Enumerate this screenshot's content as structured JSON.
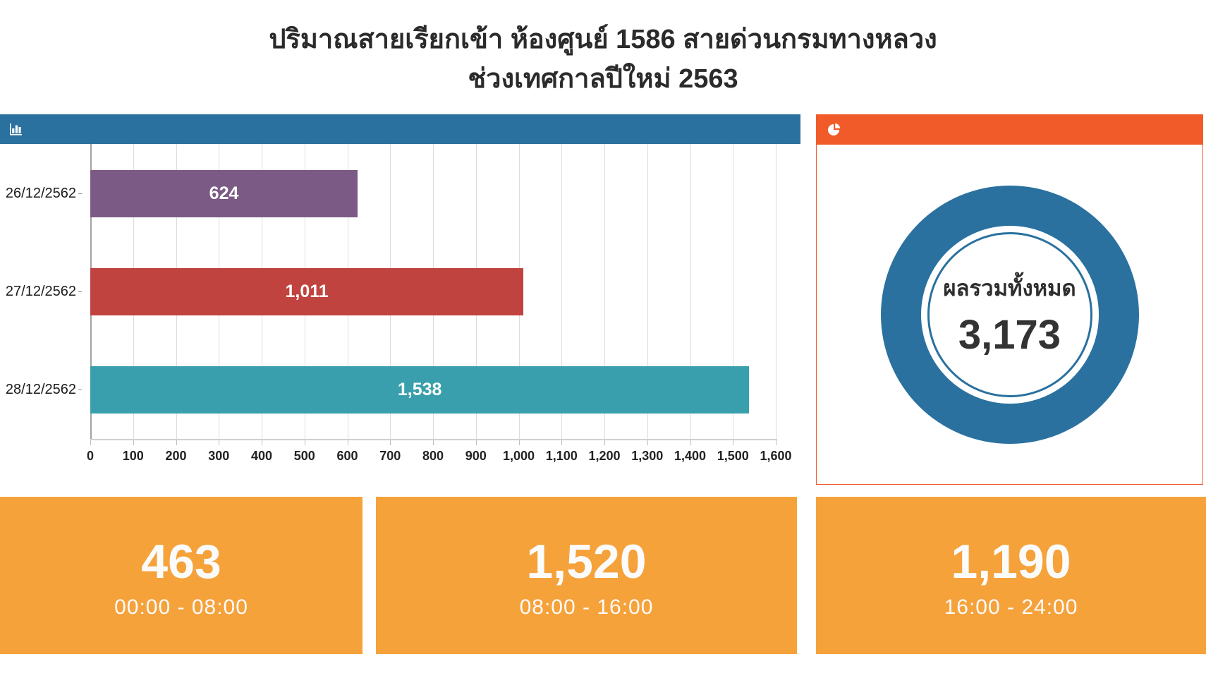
{
  "title": {
    "line1": "ปริมาณสายเรียกเข้า ห้องศูนย์ 1586 สายด่วนกรมทางหลวง",
    "line2": "ช่วงเทศกาลปีใหม่ 2563"
  },
  "icons": {
    "bar_panel": "bar-chart-icon",
    "donut_panel": "pie-chart-icon"
  },
  "colors": {
    "header_blue": "#2a719f",
    "header_orange": "#f15b2a",
    "card_orange": "#f6a23b",
    "bar_purple": "#7b5b85",
    "bar_red": "#c0433f",
    "bar_teal": "#399fac",
    "donut_ring": "#2a719f",
    "grid_line": "#dcdcdc"
  },
  "chart_data": [
    {
      "type": "bar",
      "orientation": "horizontal",
      "title": "",
      "categories": [
        "26/12/2562",
        "27/12/2562",
        "28/12/2562"
      ],
      "values": [
        624,
        1011,
        1538
      ],
      "value_labels": [
        "624",
        "1,011",
        "1,538"
      ],
      "bar_colors": [
        "#7b5b85",
        "#c0433f",
        "#399fac"
      ],
      "xlim": [
        0,
        1600
      ],
      "x_tick_step": 100,
      "x_ticks": [
        "0",
        "100",
        "200",
        "300",
        "400",
        "500",
        "600",
        "700",
        "800",
        "900",
        "1,000",
        "1,100",
        "1,200",
        "1,300",
        "1,400",
        "1,500",
        "1,600"
      ],
      "grid": true,
      "legend": "none"
    },
    {
      "type": "pie",
      "style": "donut",
      "label": "ผลรวมทั้งหมด",
      "value": 3173,
      "value_label": "3,173",
      "color": "#2a719f",
      "slices": [
        {
          "name": "ผลรวมทั้งหมด",
          "value": 3173
        }
      ]
    }
  ],
  "summary_cards": [
    {
      "value": "463",
      "label": "00:00 - 08:00"
    },
    {
      "value": "1,520",
      "label": "08:00 - 16:00"
    },
    {
      "value": "1,190",
      "label": "16:00 - 24:00"
    }
  ]
}
